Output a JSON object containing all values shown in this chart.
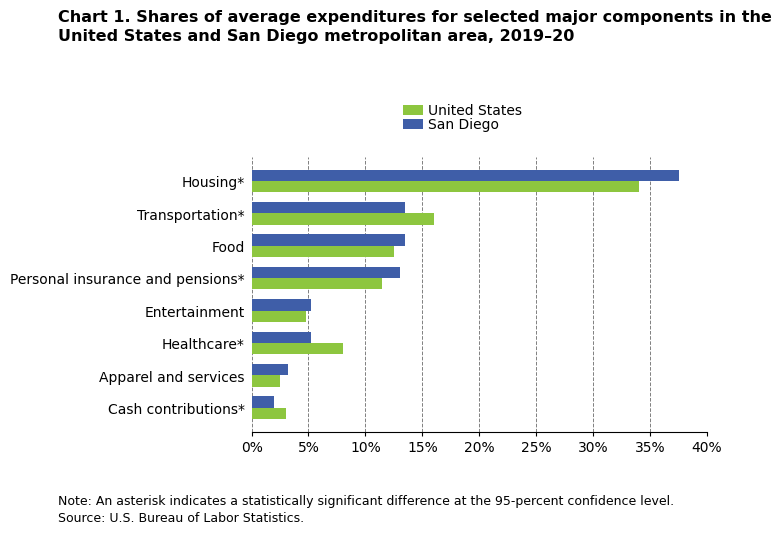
{
  "title": "Chart 1. Shares of average expenditures for selected major components in the\nUnited States and San Diego metropolitan area, 2019–20",
  "categories": [
    "Housing*",
    "Transportation*",
    "Food",
    "Personal insurance and pensions*",
    "Entertainment",
    "Healthcare*",
    "Apparel and services",
    "Cash contributions*"
  ],
  "us_values": [
    34.0,
    16.0,
    12.5,
    11.5,
    4.8,
    8.0,
    2.5,
    3.0
  ],
  "sd_values": [
    37.5,
    13.5,
    13.5,
    13.0,
    5.2,
    5.2,
    3.2,
    2.0
  ],
  "us_color": "#8DC63F",
  "sd_color": "#3F5EA8",
  "legend_labels": [
    "United States",
    "San Diego"
  ],
  "xlim": [
    0,
    40
  ],
  "xticks": [
    0,
    5,
    10,
    15,
    20,
    25,
    30,
    35,
    40
  ],
  "note": "Note: An asterisk indicates a statistically significant difference at the 95-percent confidence level.",
  "source": "Source: U.S. Bureau of Labor Statistics.",
  "title_fontsize": 11.5,
  "tick_fontsize": 10,
  "note_fontsize": 9
}
